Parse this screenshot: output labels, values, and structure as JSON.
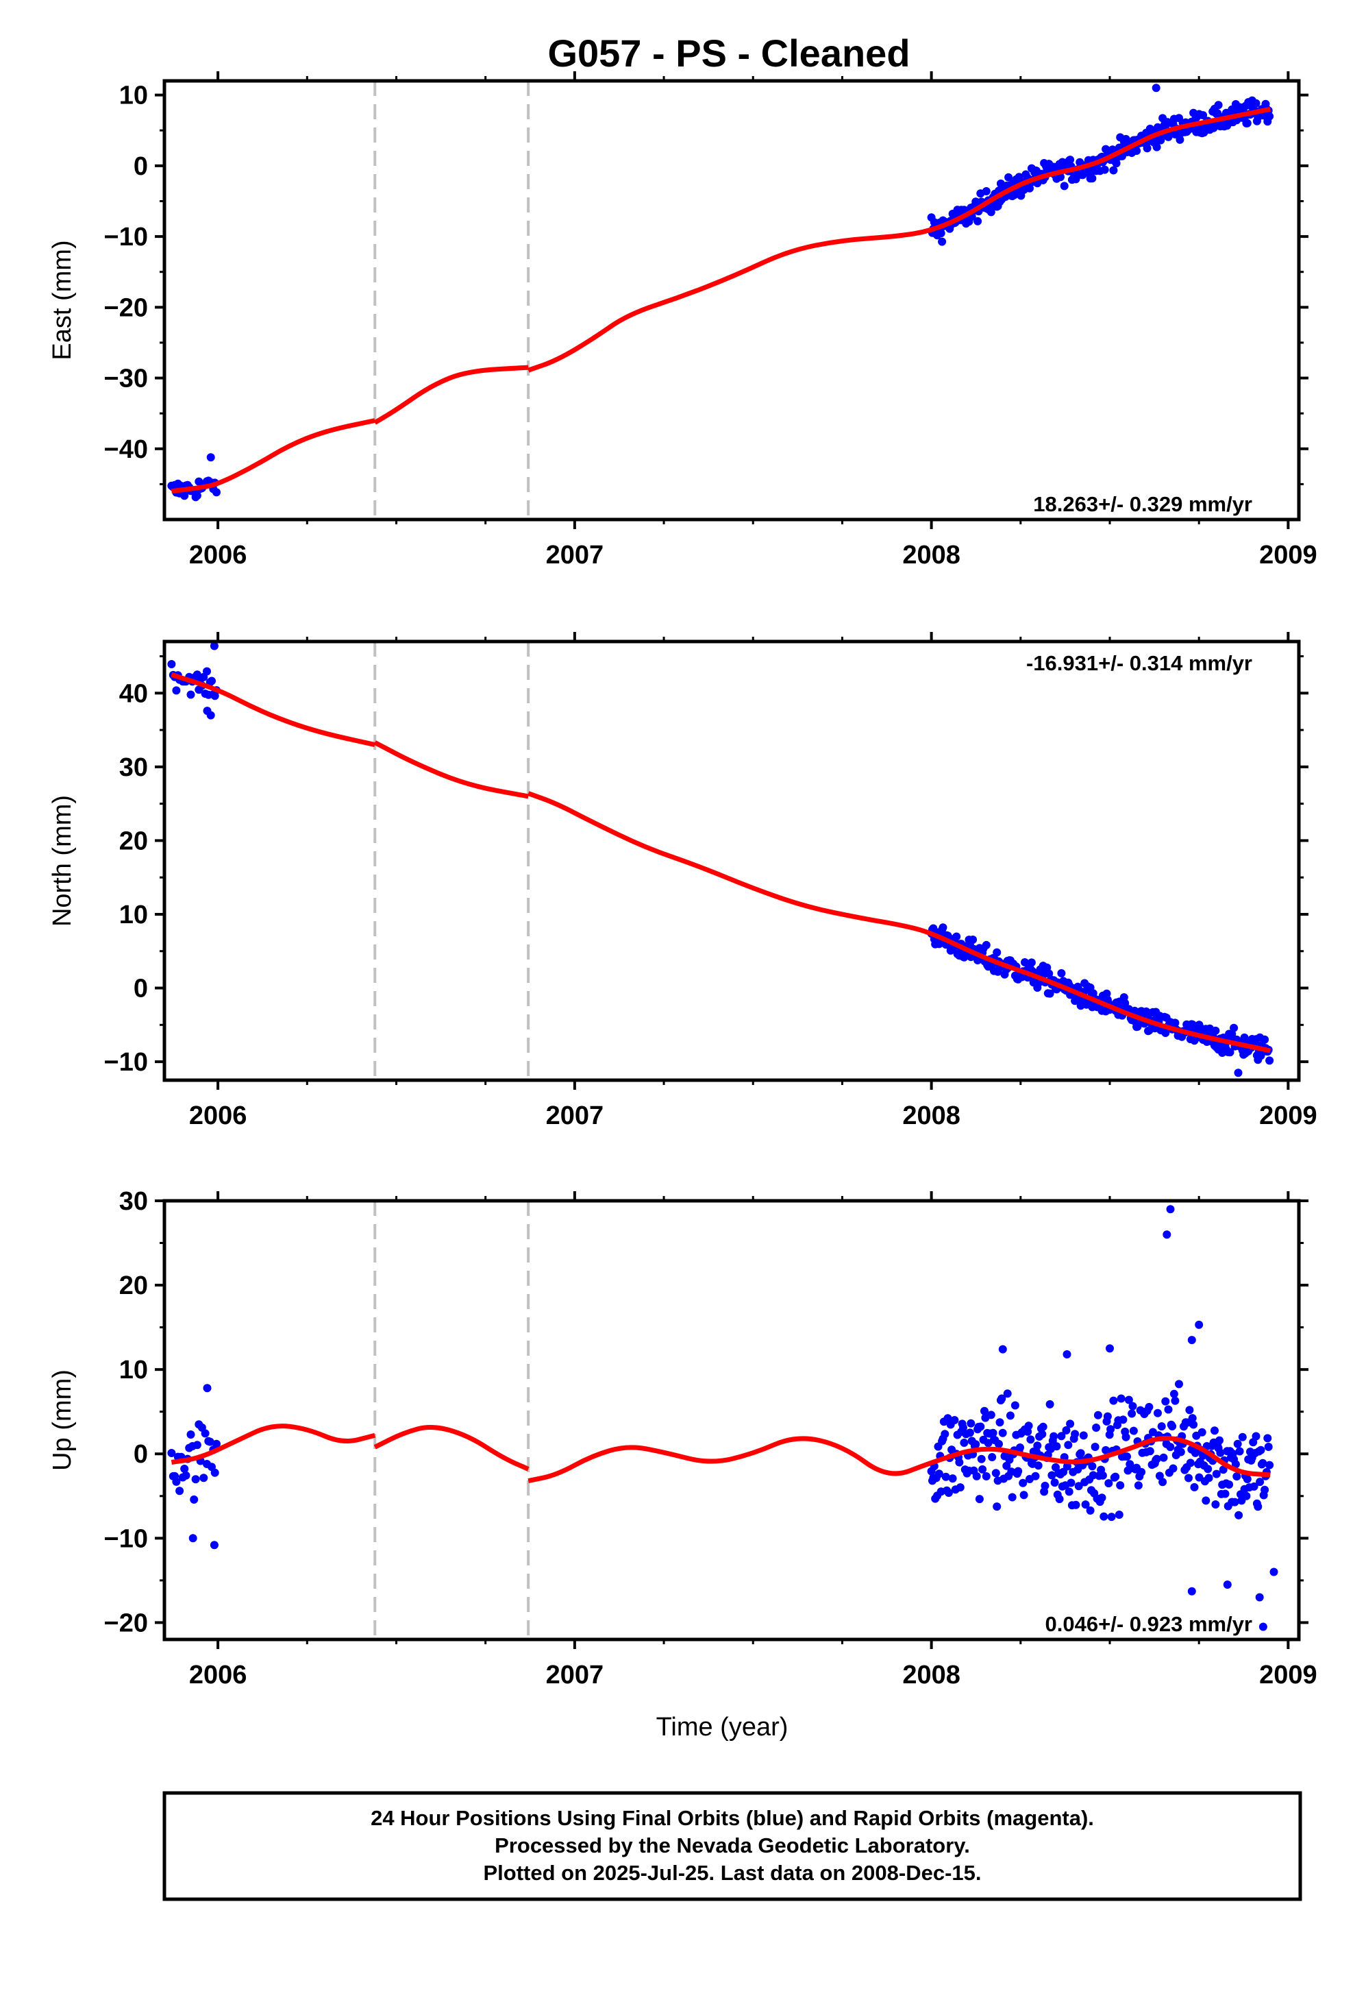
{
  "title": "G057  - PS - Cleaned",
  "chart_data": [
    {
      "type": "scatter",
      "component": "east",
      "ylabel": "East (mm)",
      "xlabel": "",
      "xlim": [
        2005.85,
        2009.03
      ],
      "ylim": [
        -50,
        12
      ],
      "xticks": [
        2006,
        2007,
        2008,
        2009
      ],
      "yticks": [
        -40,
        -30,
        -20,
        -10,
        0,
        10
      ],
      "rate_text": "18.263+/- 0.329 mm/yr",
      "rate_position": "bottom-right",
      "offsets": [
        2006.44,
        2006.87
      ],
      "series": [
        {
          "name": "",
          "color": "#0000ff",
          "style": "points",
          "segments": [
            {
              "start": 2005.87,
              "end": 2006.0,
              "step": 0.0045,
              "rate": 18.263,
              "offset": -46.0,
              "anchor": 2005.87,
              "scatter": 1.3,
              "outliers": [
                [
                  2005.98,
                  -41.2
                ]
              ]
            },
            {
              "start": 2008.0,
              "end": 2008.95,
              "step": 0.0027,
              "rate": 18.263,
              "offset": -10.0,
              "anchor": 2008.0,
              "scatter": 1.4,
              "outliers": [
                [
                  2008.63,
                  11.0
                ]
              ]
            }
          ]
        },
        {
          "name": "",
          "color": "#ff0000",
          "style": "line",
          "x": [
            2005.87,
            2005.95,
            2006.0,
            2006.1,
            2006.2,
            2006.3,
            2006.44,
            2006.44,
            2006.5,
            2006.6,
            2006.7,
            2006.87,
            2006.87,
            2006.95,
            2007.05,
            2007.15,
            2007.3,
            2007.45,
            2007.6,
            2007.75,
            2007.9,
            2008.0,
            2008.1,
            2008.2,
            2008.3,
            2008.45,
            2008.55,
            2008.65,
            2008.8,
            2008.95
          ],
          "y": [
            -46.0,
            -45.5,
            -45.0,
            -42.5,
            -39.5,
            -37.5,
            -36.0,
            -36.3,
            -34.5,
            -31.0,
            -29.0,
            -28.5,
            -28.9,
            -27.5,
            -24.5,
            -21.0,
            -18.5,
            -15.5,
            -12.0,
            -10.5,
            -10.0,
            -9.2,
            -7.0,
            -3.8,
            -1.5,
            0.0,
            2.5,
            5.0,
            6.5,
            8.0
          ]
        }
      ]
    },
    {
      "type": "scatter",
      "component": "north",
      "ylabel": "North (mm)",
      "xlabel": "",
      "xlim": [
        2005.85,
        2009.03
      ],
      "ylim": [
        -12.5,
        47
      ],
      "xticks": [
        2006,
        2007,
        2008,
        2009
      ],
      "yticks": [
        -10,
        0,
        10,
        20,
        30,
        40
      ],
      "rate_text": "-16.931+/- 0.314 mm/yr",
      "rate_position": "top-right",
      "offsets": [
        2006.44,
        2006.87
      ],
      "series": [
        {
          "name": "",
          "color": "#0000ff",
          "style": "points",
          "segments": [
            {
              "start": 2005.87,
              "end": 2006.0,
              "step": 0.0045,
              "rate": -16.931,
              "offset": 42.6,
              "anchor": 2005.87,
              "scatter": 1.3,
              "outliers": [
                [
                  2005.99,
                  46.4
                ],
                [
                  2005.98,
                  37.0
                ],
                [
                  2005.97,
                  37.6
                ]
              ]
            },
            {
              "start": 2008.0,
              "end": 2008.95,
              "step": 0.0027,
              "rate": -16.931,
              "offset": 7.5,
              "anchor": 2008.0,
              "scatter": 1.4,
              "outliers": [
                [
                  2008.86,
                  -11.5
                ]
              ]
            }
          ]
        },
        {
          "name": "",
          "color": "#ff0000",
          "style": "line",
          "x": [
            2005.87,
            2006.0,
            2006.1,
            2006.2,
            2006.3,
            2006.44,
            2006.44,
            2006.55,
            2006.7,
            2006.87,
            2006.87,
            2006.95,
            2007.05,
            2007.2,
            2007.35,
            2007.5,
            2007.65,
            2007.8,
            2007.92,
            2008.0,
            2008.15,
            2008.3,
            2008.45,
            2008.6,
            2008.75,
            2008.95
          ],
          "y": [
            42.5,
            40.5,
            38.0,
            36.0,
            34.5,
            33.0,
            33.3,
            30.5,
            27.5,
            26.0,
            26.4,
            25.0,
            22.5,
            19.0,
            16.5,
            13.5,
            11.0,
            9.5,
            8.5,
            7.5,
            4.0,
            1.5,
            -1.5,
            -4.5,
            -6.5,
            -8.5
          ]
        }
      ]
    },
    {
      "type": "scatter",
      "component": "up",
      "ylabel": "Up (mm)",
      "xlabel": "Time (year)",
      "xlim": [
        2005.85,
        2009.03
      ],
      "ylim": [
        -22,
        30
      ],
      "xticks": [
        2006,
        2007,
        2008,
        2009
      ],
      "yticks": [
        -20,
        -10,
        0,
        10,
        20,
        30
      ],
      "rate_text": "0.046+/- 0.923 mm/yr",
      "rate_position": "bottom-right",
      "offsets": [
        2006.44,
        2006.87
      ],
      "series": [
        {
          "name": "",
          "color": "#0000ff",
          "style": "points",
          "segments": [
            {
              "start": 2005.87,
              "end": 2006.0,
              "step": 0.0045,
              "rate": 0,
              "offset": 0.5,
              "anchor": 2005.87,
              "scatter": 3.5,
              "outliers": [
                [
                  2005.93,
                  -10.0
                ],
                [
                  2005.99,
                  -10.8
                ],
                [
                  2005.97,
                  7.8
                ]
              ]
            },
            {
              "start": 2008.0,
              "end": 2008.95,
              "step": 0.0027,
              "rate": 0,
              "offset": -1.0,
              "anchor": 2008.0,
              "scatter": 5.0,
              "outliers": [
                [
                  2008.67,
                  29.0
                ],
                [
                  2008.66,
                  26.0
                ],
                [
                  2008.75,
                  15.3
                ],
                [
                  2008.73,
                  13.5
                ],
                [
                  2008.73,
                  -16.3
                ],
                [
                  2008.93,
                  -20.5
                ],
                [
                  2008.92,
                  -17.0
                ],
                [
                  2008.96,
                  -14.0
                ],
                [
                  2008.83,
                  -15.5
                ],
                [
                  2008.5,
                  12.5
                ],
                [
                  2008.2,
                  12.4
                ],
                [
                  2008.38,
                  11.8
                ]
              ]
            }
          ]
        },
        {
          "name": "",
          "color": "#ff0000",
          "style": "line",
          "x": [
            2005.87,
            2005.95,
            2006.05,
            2006.15,
            2006.25,
            2006.35,
            2006.44,
            2006.44,
            2006.52,
            2006.6,
            2006.7,
            2006.8,
            2006.87,
            2006.87,
            2006.95,
            2007.05,
            2007.15,
            2007.25,
            2007.38,
            2007.5,
            2007.62,
            2007.75,
            2007.88,
            2008.0,
            2008.15,
            2008.3,
            2008.42,
            2008.55,
            2008.65,
            2008.75,
            2008.85,
            2008.95
          ],
          "y": [
            -1.0,
            -0.5,
            1.5,
            3.5,
            3.0,
            1.2,
            2.2,
            0.8,
            2.5,
            3.4,
            2.2,
            -0.5,
            -1.8,
            -3.2,
            -2.5,
            -0.2,
            1.0,
            0.2,
            -1.2,
            0.0,
            2.2,
            1.0,
            -3.0,
            -1.0,
            1.0,
            -0.5,
            -1.2,
            0.5,
            2.2,
            1.0,
            -2.2,
            -2.5
          ]
        }
      ]
    }
  ],
  "footer": {
    "line1": "24 Hour Positions Using Final Orbits (blue) and Rapid Orbits (magenta).",
    "line2": "Processed by the Nevada Geodetic Laboratory.",
    "line3": "Plotted on 2025-Jul-25. Last data on 2008-Dec-15."
  },
  "colors": {
    "points": "#0000ff",
    "model": "#ff0000",
    "offset_lines": "#c0c0c0",
    "frame": "#000000"
  }
}
